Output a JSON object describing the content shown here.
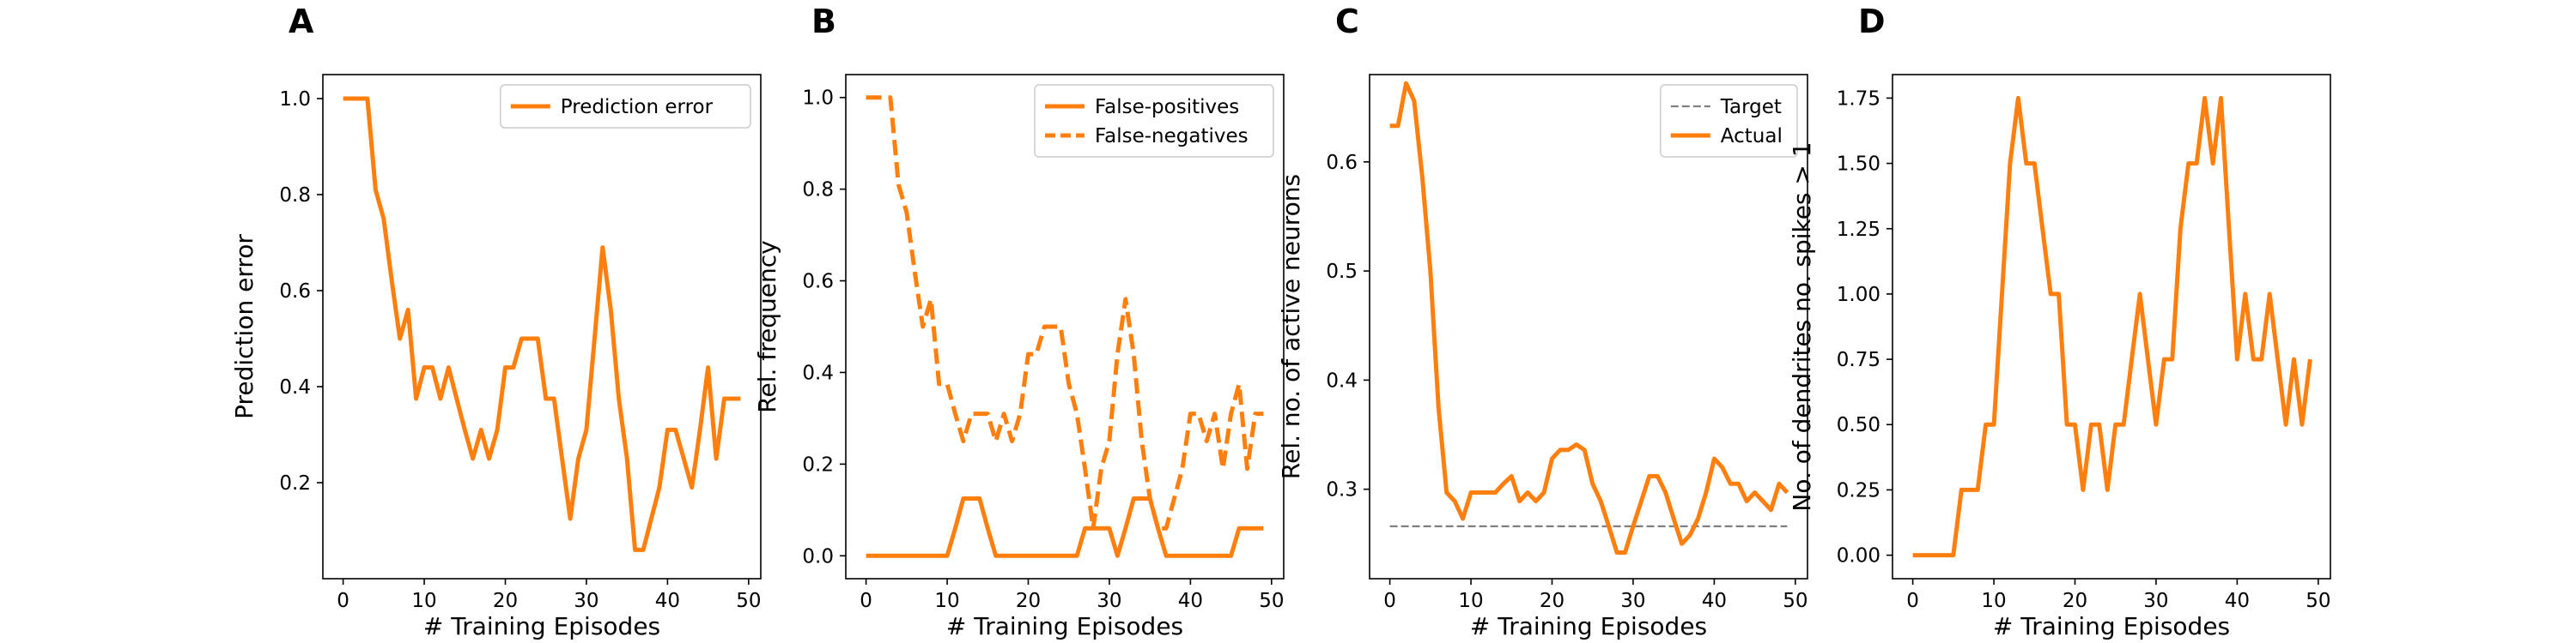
{
  "colors": {
    "orange": "#ff7f0e",
    "gray": "#7f7f7f",
    "axis": "#000000"
  },
  "chart_data": [
    {
      "panel": "A",
      "type": "line",
      "xlabel": "# Training Episodes",
      "ylabel": "Prediction error",
      "xlim": [
        -2.5,
        51.5
      ],
      "ylim": [
        0.0,
        1.05
      ],
      "xticks": [
        0,
        10,
        20,
        30,
        40,
        50
      ],
      "yticks": [
        0.2,
        0.4,
        0.6,
        0.8,
        1.0
      ],
      "ytick_labels": [
        "0.2",
        "0.4",
        "0.6",
        "0.8",
        "1.0"
      ],
      "grid": false,
      "legend": "top-right",
      "series": [
        {
          "name": "Prediction error",
          "style": "solid",
          "color": "#ff7f0e",
          "x": [
            0,
            1,
            2,
            3,
            4,
            5,
            6,
            7,
            8,
            9,
            10,
            11,
            12,
            13,
            14,
            15,
            16,
            17,
            18,
            19,
            20,
            21,
            22,
            23,
            24,
            25,
            26,
            27,
            28,
            29,
            30,
            31,
            32,
            33,
            34,
            35,
            36,
            37,
            38,
            39,
            40,
            41,
            42,
            43,
            44,
            45,
            46,
            47,
            48,
            49
          ],
          "values": [
            1.0,
            1.0,
            1.0,
            1.0,
            0.81,
            0.75,
            0.62,
            0.5,
            0.56,
            0.375,
            0.44,
            0.44,
            0.375,
            0.44,
            0.375,
            0.31,
            0.25,
            0.31,
            0.25,
            0.31,
            0.44,
            0.44,
            0.5,
            0.5,
            0.5,
            0.375,
            0.375,
            0.25,
            0.125,
            0.25,
            0.31,
            0.5,
            0.69,
            0.56,
            0.375,
            0.25,
            0.06,
            0.06,
            0.125,
            0.19,
            0.31,
            0.31,
            0.25,
            0.19,
            0.31,
            0.44,
            0.25,
            0.375,
            0.375,
            0.375
          ]
        }
      ]
    },
    {
      "panel": "B",
      "type": "line",
      "xlabel": "# Training Episodes",
      "ylabel": "Rel. frequency",
      "xlim": [
        -2.5,
        51.5
      ],
      "ylim": [
        -0.05,
        1.05
      ],
      "xticks": [
        0,
        10,
        20,
        30,
        40,
        50
      ],
      "yticks": [
        0.0,
        0.2,
        0.4,
        0.6,
        0.8,
        1.0
      ],
      "ytick_labels": [
        "0.0",
        "0.2",
        "0.4",
        "0.6",
        "0.8",
        "1.0"
      ],
      "grid": false,
      "legend": "top-right",
      "series": [
        {
          "name": "False-positives",
          "style": "solid",
          "color": "#ff7f0e",
          "x": [
            0,
            1,
            2,
            3,
            4,
            5,
            6,
            7,
            8,
            9,
            10,
            11,
            12,
            13,
            14,
            15,
            16,
            17,
            18,
            19,
            20,
            21,
            22,
            23,
            24,
            25,
            26,
            27,
            28,
            29,
            30,
            31,
            32,
            33,
            34,
            35,
            36,
            37,
            38,
            39,
            40,
            41,
            42,
            43,
            44,
            45,
            46,
            47,
            48,
            49
          ],
          "values": [
            0,
            0,
            0,
            0,
            0,
            0,
            0,
            0,
            0,
            0,
            0,
            0.06,
            0.125,
            0.125,
            0.125,
            0.06,
            0,
            0,
            0,
            0,
            0,
            0,
            0,
            0,
            0,
            0,
            0,
            0.06,
            0.06,
            0.06,
            0.06,
            0,
            0.06,
            0.125,
            0.125,
            0.125,
            0.06,
            0,
            0,
            0,
            0,
            0,
            0,
            0,
            0,
            0,
            0.06,
            0.06,
            0.06,
            0.06
          ]
        },
        {
          "name": "False-negatives",
          "style": "dashed",
          "color": "#ff7f0e",
          "x": [
            0,
            1,
            2,
            3,
            4,
            5,
            6,
            7,
            8,
            9,
            10,
            11,
            12,
            13,
            14,
            15,
            16,
            17,
            18,
            19,
            20,
            21,
            22,
            23,
            24,
            25,
            26,
            27,
            28,
            29,
            30,
            31,
            32,
            33,
            34,
            35,
            36,
            37,
            38,
            39,
            40,
            41,
            42,
            43,
            44,
            45,
            46,
            47,
            48,
            49
          ],
          "values": [
            1.0,
            1.0,
            1.0,
            1.0,
            0.81,
            0.75,
            0.62,
            0.5,
            0.56,
            0.375,
            0.375,
            0.31,
            0.25,
            0.31,
            0.31,
            0.31,
            0.25,
            0.31,
            0.25,
            0.31,
            0.44,
            0.44,
            0.5,
            0.5,
            0.5,
            0.375,
            0.31,
            0.19,
            0.06,
            0.19,
            0.25,
            0.44,
            0.56,
            0.44,
            0.25,
            0.125,
            0.06,
            0.06,
            0.125,
            0.19,
            0.31,
            0.31,
            0.25,
            0.31,
            0.19,
            0.31,
            0.375,
            0.19,
            0.31,
            0.31
          ]
        }
      ]
    },
    {
      "panel": "C",
      "type": "line",
      "xlabel": "# Training Episodes",
      "ylabel": "Rel. no. of active neurons",
      "xlim": [
        -2.5,
        51.5
      ],
      "ylim": [
        0.218,
        0.68
      ],
      "xticks": [
        0,
        10,
        20,
        30,
        40,
        50
      ],
      "yticks": [
        0.3,
        0.4,
        0.5,
        0.6
      ],
      "ytick_labels": [
        "0.3",
        "0.4",
        "0.5",
        "0.6"
      ],
      "grid": false,
      "legend": "top-right",
      "series": [
        {
          "name": "Target",
          "style": "dashed",
          "color": "#7f7f7f",
          "x": [
            0,
            49
          ],
          "values": [
            0.266,
            0.266
          ]
        },
        {
          "name": "Actual",
          "style": "solid",
          "color": "#ff7f0e",
          "x": [
            0,
            1,
            2,
            3,
            4,
            5,
            6,
            7,
            8,
            9,
            10,
            11,
            12,
            13,
            14,
            15,
            16,
            17,
            18,
            19,
            20,
            21,
            22,
            23,
            24,
            25,
            26,
            27,
            28,
            29,
            30,
            31,
            32,
            33,
            34,
            35,
            36,
            37,
            38,
            39,
            40,
            41,
            42,
            43,
            44,
            45,
            46,
            47,
            48,
            49
          ],
          "values": [
            0.633,
            0.633,
            0.672,
            0.656,
            0.586,
            0.5,
            0.375,
            0.297,
            0.289,
            0.273,
            0.297,
            0.297,
            0.297,
            0.297,
            0.305,
            0.312,
            0.289,
            0.297,
            0.289,
            0.297,
            0.328,
            0.336,
            0.336,
            0.341,
            0.336,
            0.305,
            0.289,
            0.266,
            0.242,
            0.242,
            0.266,
            0.289,
            0.312,
            0.312,
            0.297,
            0.273,
            0.25,
            0.258,
            0.273,
            0.297,
            0.328,
            0.32,
            0.305,
            0.305,
            0.289,
            0.297,
            0.289,
            0.281,
            0.305,
            0.297
          ]
        }
      ]
    },
    {
      "panel": "D",
      "type": "line",
      "xlabel": "# Training Episodes",
      "ylabel": "No. of dendrites no. spikes > 1",
      "xlim": [
        -2.5,
        51.5
      ],
      "ylim": [
        -0.09,
        1.84
      ],
      "xticks": [
        0,
        10,
        20,
        30,
        40,
        50
      ],
      "yticks": [
        0.0,
        0.25,
        0.5,
        0.75,
        1.0,
        1.25,
        1.5,
        1.75
      ],
      "ytick_labels": [
        "0.00",
        "0.25",
        "0.50",
        "0.75",
        "1.00",
        "1.25",
        "1.50",
        "1.75"
      ],
      "grid": false,
      "legend": "none",
      "series": [
        {
          "style": "solid",
          "color": "#ff7f0e",
          "x": [
            0,
            1,
            2,
            3,
            4,
            5,
            6,
            7,
            8,
            9,
            10,
            11,
            12,
            13,
            14,
            15,
            16,
            17,
            18,
            19,
            20,
            21,
            22,
            23,
            24,
            25,
            26,
            27,
            28,
            29,
            30,
            31,
            32,
            33,
            34,
            35,
            36,
            37,
            38,
            39,
            40,
            41,
            42,
            43,
            44,
            45,
            46,
            47,
            48,
            49
          ],
          "values": [
            0,
            0,
            0,
            0,
            0,
            0,
            0.25,
            0.25,
            0.25,
            0.5,
            0.5,
            1.0,
            1.5,
            1.75,
            1.5,
            1.5,
            1.25,
            1.0,
            1.0,
            0.5,
            0.5,
            0.25,
            0.5,
            0.5,
            0.25,
            0.5,
            0.5,
            0.75,
            1.0,
            0.75,
            0.5,
            0.75,
            0.75,
            1.25,
            1.5,
            1.5,
            1.75,
            1.5,
            1.75,
            1.25,
            0.75,
            1.0,
            0.75,
            0.75,
            1.0,
            0.75,
            0.5,
            0.75,
            0.5,
            0.75
          ]
        }
      ]
    }
  ]
}
